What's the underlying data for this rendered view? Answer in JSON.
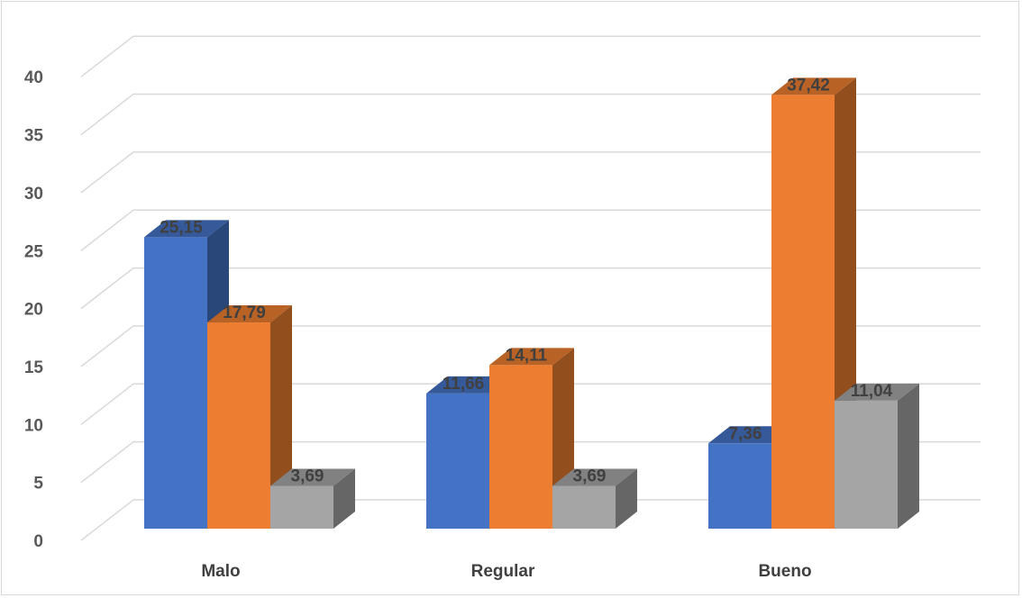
{
  "chart_data": {
    "type": "bar",
    "style": "3d-clustered-column",
    "categories": [
      "Malo",
      "Regular",
      "Bueno"
    ],
    "series": [
      {
        "values": [
          25.15,
          11.66,
          7.36
        ],
        "labels": [
          "25,15",
          "11,66",
          "7,36"
        ],
        "color": "#4472c4"
      },
      {
        "values": [
          17.79,
          14.11,
          37.42
        ],
        "labels": [
          "17,79",
          "14,11",
          "37,42"
        ],
        "color": "#ed7d31"
      },
      {
        "values": [
          3.69,
          3.69,
          11.04
        ],
        "labels": [
          "3,69",
          "3,69",
          "11,04"
        ],
        "color": "#a5a5a5"
      }
    ],
    "ylim": [
      0,
      40
    ],
    "yticks": [
      0,
      5,
      10,
      15,
      20,
      25,
      30,
      35,
      40
    ],
    "ytick_labels": [
      "0",
      "5",
      "10",
      "15",
      "20",
      "25",
      "30",
      "35",
      "40"
    ],
    "grid": true,
    "legend": "none",
    "title": "",
    "xlabel": "",
    "ylabel": ""
  }
}
